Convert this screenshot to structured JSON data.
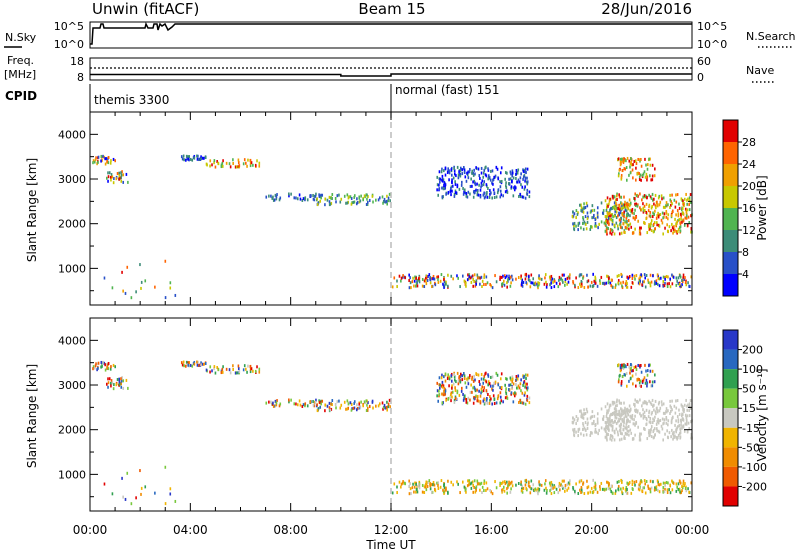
{
  "header": {
    "title_left": "Unwin (fitACF)",
    "title_center": "Beam 15",
    "title_right": "28/Jun/2016"
  },
  "panels_top": {
    "nsky_label": "N.Sky",
    "nsky_ticks": [
      "10^5",
      "10^0"
    ],
    "nsearch_label": "N.Search",
    "nsearch_ticks": [
      "10^5",
      "10^0"
    ],
    "freq_label": "Freq.",
    "freq_unit": "[MHz]",
    "freq_ticks": [
      "18",
      "8"
    ],
    "nave_label": "Nave",
    "nave_ticks": [
      "60",
      "0"
    ],
    "cpid_label": "CPID",
    "cpid_segments": [
      {
        "label": "themis 3300",
        "start_hour": 0,
        "end_hour": 12
      },
      {
        "label": "normal (fast) 151",
        "start_hour": 12,
        "end_hour": 24
      }
    ]
  },
  "axes": {
    "ylabel": "Slant Range [km]",
    "yticks": [
      "1000",
      "2000",
      "3000",
      "4000"
    ],
    "xticks": [
      "00:00",
      "04:00",
      "08:00",
      "12:00",
      "16:00",
      "20:00",
      "00:00"
    ],
    "xlabel": "Time UT"
  },
  "colorbars": {
    "power": {
      "label": "Power [dB]",
      "ticks": [
        "4",
        "8",
        "12",
        "16",
        "20",
        "24",
        "28"
      ],
      "colors": [
        "#0000ff",
        "#2850c8",
        "#3c8c78",
        "#50b450",
        "#c8c800",
        "#f0a000",
        "#ff6400",
        "#e10000"
      ]
    },
    "velocity": {
      "label": "Velocity [m s⁻¹]",
      "ticks": [
        "200",
        "100",
        "50",
        "15",
        "-15",
        "-50",
        "-100",
        "-200"
      ],
      "colors": [
        "#2838c8",
        "#2868c0",
        "#30a050",
        "#78c83c",
        "#c8c8c0",
        "#f0b400",
        "#f08c00",
        "#f05a00",
        "#e10000"
      ]
    }
  },
  "chart_data": {
    "type": "heatmap",
    "x_range_hours": [
      0,
      24
    ],
    "y_range_km": [
      180,
      4500
    ],
    "freq_mhz": [
      {
        "start_hour": 0,
        "end_hour": 10,
        "value": 10.5
      },
      {
        "start_hour": 10,
        "end_hour": 12,
        "value": 9.8
      },
      {
        "start_hour": 12,
        "end_hour": 24,
        "value": 10.7
      }
    ],
    "power_echo_regions": [
      {
        "t0": 0.0,
        "t1": 1.0,
        "r0": 3350,
        "r1": 3550,
        "level": "mixed"
      },
      {
        "t0": 0.6,
        "t1": 1.5,
        "r0": 2950,
        "r1": 3200,
        "level": "mixed"
      },
      {
        "t0": 3.6,
        "t1": 4.6,
        "r0": 3450,
        "r1": 3550,
        "level": "low"
      },
      {
        "t0": 4.6,
        "t1": 6.8,
        "r0": 3300,
        "r1": 3480,
        "level": "high"
      },
      {
        "t0": 6.8,
        "t1": 9.0,
        "r0": 2550,
        "r1": 2700,
        "level": "low"
      },
      {
        "t0": 9.0,
        "t1": 12.0,
        "r0": 2450,
        "r1": 2700,
        "level": "mid"
      },
      {
        "t0": 12.0,
        "t1": 24.0,
        "r0": 600,
        "r1": 900,
        "level": "mixed"
      },
      {
        "t0": 13.8,
        "t1": 17.5,
        "r0": 2600,
        "r1": 3300,
        "level": "low"
      },
      {
        "t0": 19.2,
        "t1": 21.5,
        "r0": 1900,
        "r1": 2500,
        "level": "mid"
      },
      {
        "t0": 20.5,
        "t1": 24.0,
        "r0": 1800,
        "r1": 2700,
        "level": "high"
      },
      {
        "t0": 21.0,
        "t1": 22.5,
        "r0": 3000,
        "r1": 3500,
        "level": "high"
      },
      {
        "t0": 0.5,
        "t1": 3.5,
        "r0": 300,
        "r1": 1200,
        "level": "sparse"
      }
    ]
  }
}
